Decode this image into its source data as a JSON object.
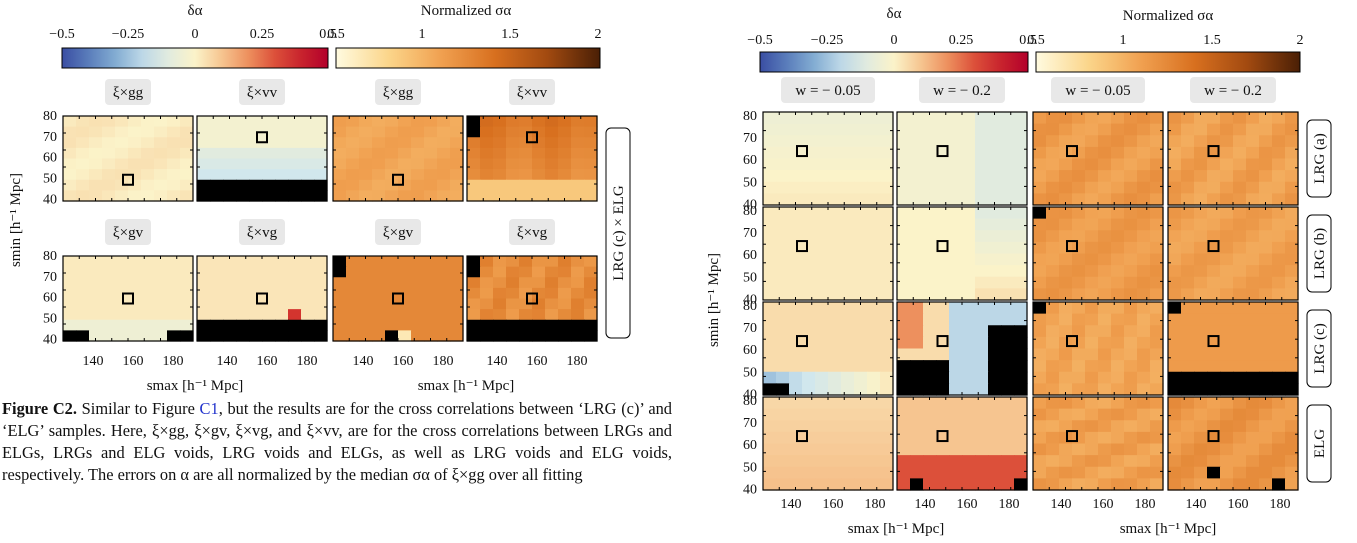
{
  "colors": {
    "delta_cmap": [
      "#3a4ea3",
      "#6f9dcb",
      "#cfe6ee",
      "#fbf3c9",
      "#f3a66a",
      "#d63a2e",
      "#b3002b"
    ],
    "sigma_cmap": [
      "#fffbe0",
      "#fbd58a",
      "#f0a050",
      "#d8701f",
      "#a24a10",
      "#4a1f05"
    ],
    "box_color": "#000000",
    "masked_color": "#000000",
    "link_color": "#2233cc"
  },
  "left_figure": {
    "colorbars": [
      {
        "title": "δα",
        "ticks": [
          "−0.5",
          "−0.25",
          "0",
          "0.25",
          "0.5"
        ]
      },
      {
        "title": "Normalized σα",
        "ticks": [
          "0.5",
          "1",
          "1.5",
          "2"
        ]
      }
    ],
    "column_labels_top": [
      "ξ×gg",
      "ξ×vv",
      "ξ×gg",
      "ξ×vv"
    ],
    "column_labels_bottom": [
      "ξ×gv",
      "ξ×vg",
      "ξ×gv",
      "ξ×vg"
    ],
    "row_label": "LRG (c) × ELG",
    "yticks": [
      "80",
      "70",
      "60",
      "50",
      "40"
    ],
    "xticks": [
      "140",
      "160",
      "180"
    ],
    "ylabel": "smin [h⁻¹ Mpc]",
    "xlabel": "smax [h⁻¹ Mpc]"
  },
  "caption": {
    "label": "Figure C2.",
    "ref": "C1",
    "text_before_ref": "Similar to Figure ",
    "text_after_ref": ", but the results are for the cross correlations between ‘LRG (c)’ and ‘ELG’ samples. Here, ξ×gg, ξ×gv, ξ×vg, and ξ×vv, are for the cross correlations between LRGs and ELGs, LRGs and ELG voids, LRG voids and ELGs, as well as LRG voids and ELG voids, respectively. The errors on α are all normalized by the median σα of ξ×gg over all fitting"
  },
  "right_figure": {
    "colorbars": [
      {
        "title": "δα",
        "ticks": [
          "−0.5",
          "−0.25",
          "0",
          "0.25",
          "0.5"
        ]
      },
      {
        "title": "Normalized σα",
        "ticks": [
          "0.5",
          "1",
          "1.5",
          "2"
        ]
      }
    ],
    "column_labels": [
      "w = − 0.05",
      "w = − 0.2",
      "w = − 0.05",
      "w = − 0.2"
    ],
    "row_labels": [
      "LRG (a)",
      "LRG (b)",
      "LRG (c)",
      "ELG"
    ],
    "yticks": [
      "80",
      "70",
      "60",
      "50",
      "40"
    ],
    "xticks": [
      "140",
      "160",
      "180"
    ],
    "ylabel": "smin [h⁻¹ Mpc]",
    "xlabel": "smax [h⁻¹ Mpc]"
  }
}
